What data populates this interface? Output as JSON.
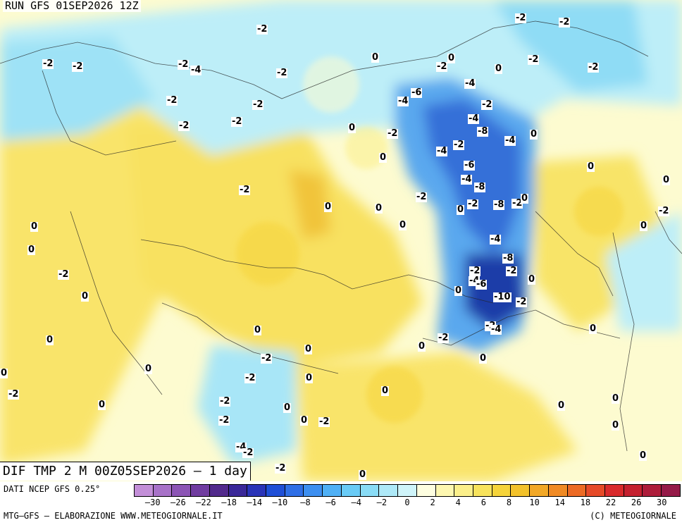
{
  "header": {
    "run": "RUN GFS 01SEP2026 12Z",
    "field": "DIF TMP 2 M 00Z05SEP2026 – 1 day"
  },
  "colors": {
    "cold_strong": "#1a2a9e",
    "cold_mid": "#3b6fd8",
    "cold_light": "#7fd4f2",
    "cool_pale": "#c8f3fb",
    "neutral": "#fdfbd0",
    "warm_pale": "#fbef8a",
    "warm": "#f6d43a"
  },
  "map": {
    "contour_labels": [
      "-2",
      "-2",
      "-2",
      "-2",
      "-4",
      "-2",
      "-2",
      "-2",
      "-2",
      "-2",
      "-2",
      "-2",
      "-2",
      "-2",
      "0",
      "0",
      "0",
      "-4",
      "-6",
      "-2",
      "-4",
      "-2",
      "-4",
      "-8",
      "-4",
      "-2",
      "-4",
      "-6",
      "-4",
      "-8",
      "-2",
      "-8",
      "-2",
      "0",
      "0",
      "0",
      "0",
      "-2",
      "0",
      "-2",
      "-4",
      "-8",
      "-2",
      "-4",
      "-6",
      "-2",
      "-10",
      "-2",
      "0",
      "-2",
      "-4",
      "-2",
      "0",
      "0",
      "0",
      "0",
      "0",
      "0",
      "-2",
      "0",
      "0",
      "0",
      "0",
      "0",
      "0",
      "0",
      "-2",
      "0",
      "0",
      "-2",
      "-2",
      "-2",
      "-2",
      "-2",
      "0",
      "0",
      "-2",
      "-4",
      "-2",
      "0",
      "0",
      "0",
      "-2",
      "-2",
      "0",
      "0",
      "0",
      "0",
      "-2",
      "0",
      "0",
      "0",
      "0"
    ]
  },
  "footer": {
    "source": "DATI NCEP GFS 0.25°",
    "credits_left": "MTG–GFS – ELABORAZIONE WWW.METEOGIORNALE.IT",
    "credits_right": "(C) METEOGIORNALE"
  },
  "colorbar": {
    "colors": [
      "#c38fd8",
      "#a872c8",
      "#8c55b5",
      "#703c9f",
      "#522a8c",
      "#3a2898",
      "#2a34b8",
      "#1f4fd6",
      "#2f6fe6",
      "#3d8ff0",
      "#4fb0f5",
      "#69cbf6",
      "#89dcf6",
      "#aee9f8",
      "#cff4fa",
      "#fefee0",
      "#fdf7b0",
      "#fbef8a",
      "#f8e35c",
      "#f6d43a",
      "#f3c22a",
      "#f2a826",
      "#f08a24",
      "#ec6a24",
      "#e64a28",
      "#d92a2c",
      "#c4202f",
      "#ad1c3a",
      "#951a48"
    ],
    "tick_labels": [
      "–30",
      "–26",
      "–22",
      "–18",
      "–14",
      "–10",
      "–8",
      "–6",
      "–4",
      "–2",
      "0",
      "2",
      "4",
      "6",
      "8",
      "10",
      "14",
      "18",
      "22",
      "26",
      "30"
    ]
  }
}
